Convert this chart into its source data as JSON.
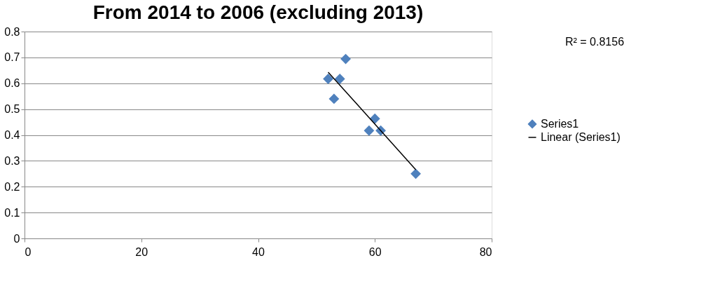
{
  "chart_data": {
    "type": "scatter",
    "title": "From 2014 to 2006 (excluding 2013)",
    "x": [
      52,
      54,
      55,
      53,
      60,
      59,
      61,
      67
    ],
    "series": [
      {
        "name": "Series1",
        "color": "#4f81bd",
        "marker": "diamond",
        "values": [
          0.617,
          0.617,
          0.694,
          0.54,
          0.463,
          0.417,
          0.417,
          0.25
        ]
      },
      {
        "name": "Linear (Series1)",
        "color": "#000000",
        "type": "line",
        "marker": "none",
        "x": [
          52,
          67
        ],
        "values": [
          0.643,
          0.266
        ]
      }
    ],
    "xlim": [
      0,
      80
    ],
    "xticks": [
      0,
      20,
      40,
      60,
      80
    ],
    "ylim": [
      0,
      0.8
    ],
    "yticks": [
      0,
      0.1,
      0.2,
      0.3,
      0.4,
      0.5,
      0.6,
      0.7,
      0.8
    ],
    "grid": "y",
    "legend": "right",
    "annotations": [
      "R² = 0.8156"
    ]
  }
}
